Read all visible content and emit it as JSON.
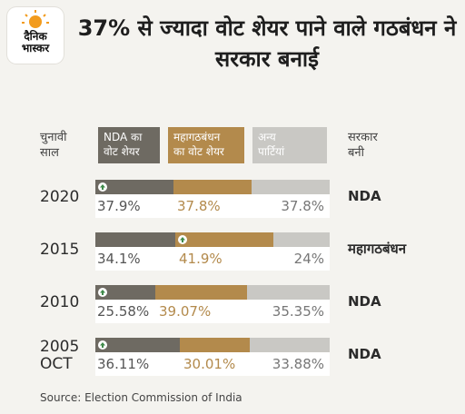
{
  "logo": {
    "line1": "दैनिक",
    "line2": "भास्कर"
  },
  "title": "37% से ज्यादा वोट शेयर पाने वाले गठबंधन ने सरकार बनाई",
  "headers": {
    "year_line1": "चुनावी",
    "year_line2": "साल",
    "gov_line1": "सरकार",
    "gov_line2": "बनी"
  },
  "colors": {
    "nda": "#6e6a62",
    "mgb": "#b38a4c",
    "others": "#c9c8c4"
  },
  "chart_data": {
    "type": "bar",
    "orientation": "horizontal",
    "stacked": true,
    "categories": [
      "2020",
      "2015",
      "2010",
      "2005 OCT"
    ],
    "category_lines": [
      [
        "2020"
      ],
      [
        "2015"
      ],
      [
        "2010"
      ],
      [
        "2005",
        "OCT"
      ]
    ],
    "series": [
      {
        "name": "NDA का वोट शेयर",
        "name_lines": [
          "NDA का",
          "वोट शेयर"
        ],
        "values": [
          37.9,
          34.1,
          25.58,
          36.11
        ],
        "labels": [
          "37.9%",
          "34.1%",
          "25.58%",
          "36.11%"
        ]
      },
      {
        "name": "महागठबंधन का वोट शेयर",
        "name_lines": [
          "महागठबंधन",
          "का वोट शेयर"
        ],
        "values": [
          37.8,
          41.9,
          39.07,
          30.01
        ],
        "labels": [
          "37.8%",
          "41.9%",
          "39.07%",
          "30.01%"
        ]
      },
      {
        "name": "अन्य पार्टियां",
        "name_lines": [
          "अन्य",
          "पार्टियां"
        ],
        "values": [
          37.8,
          24,
          35.35,
          33.88
        ],
        "labels": [
          "37.8%",
          "24%",
          "35.35%",
          "33.88%"
        ]
      }
    ],
    "government": [
      "NDA",
      "महागठबंधन",
      "NDA",
      "NDA"
    ],
    "up_arrow_on": [
      "nda",
      "mgb",
      "nda",
      "nda"
    ],
    "legend_position": "top"
  },
  "source": "Source: Election Commission of India"
}
